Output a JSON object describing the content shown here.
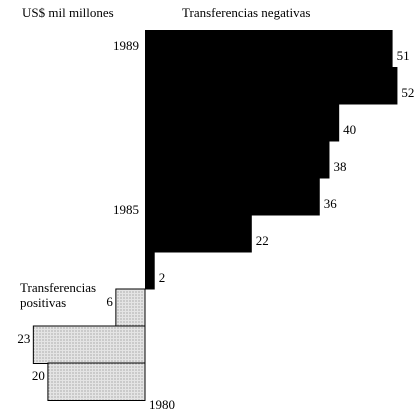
{
  "chart_data": {
    "type": "diverging-bar",
    "y_label": "US$ mil millones",
    "categories": [
      "1989",
      null,
      null,
      null,
      "1985",
      null,
      null,
      null,
      null,
      "1980"
    ],
    "series": [
      {
        "name": "Transferencias negativas",
        "color": "#000000",
        "values": [
          51,
          52,
          40,
          38,
          36,
          22,
          2,
          null,
          null,
          null
        ]
      },
      {
        "name": "Transferencias positivas",
        "color": "#d8d8d8",
        "values": [
          null,
          null,
          null,
          null,
          null,
          null,
          null,
          6,
          23,
          20
        ]
      }
    ],
    "xlim": [
      0,
      55
    ]
  }
}
